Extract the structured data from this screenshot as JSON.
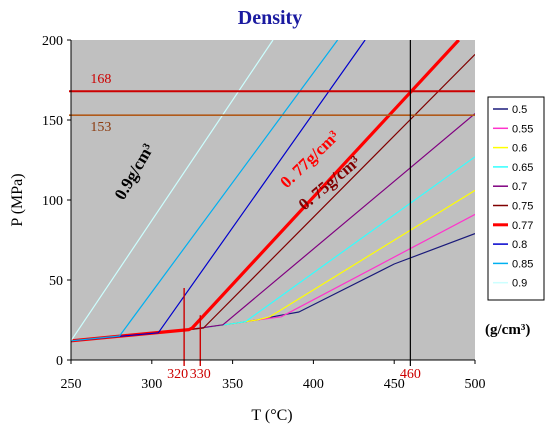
{
  "chart_data": {
    "type": "line",
    "title": "Density",
    "xlabel": "T (°C)",
    "ylabel": "P  (MPa)",
    "xlim": [
      250,
      500
    ],
    "ylim": [
      0,
      200
    ],
    "xticks": [
      "250",
      "300",
      "350",
      "400",
      "450",
      "500"
    ],
    "yticks": [
      "0",
      "50",
      "100",
      "150",
      "200"
    ],
    "grid": false,
    "legend_position": "right",
    "unit_label": "(g/cm³)",
    "series": [
      {
        "name": "0.5",
        "color": "#1a1a7a",
        "width": 1.2,
        "points": [
          [
            250,
            12
          ],
          [
            323,
            19
          ],
          [
            352,
            23
          ],
          [
            365,
            25
          ],
          [
            380,
            28
          ],
          [
            391,
            30
          ],
          [
            450,
            60
          ],
          [
            500,
            79
          ]
        ]
      },
      {
        "name": "0.55",
        "color": "#ff33cc",
        "width": 1.2,
        "points": [
          [
            250,
            12
          ],
          [
            323,
            19
          ],
          [
            352,
            23
          ],
          [
            365,
            25
          ],
          [
            380,
            27
          ],
          [
            500,
            91
          ]
        ]
      },
      {
        "name": "0.6",
        "color": "#ffff00",
        "width": 1.2,
        "points": [
          [
            250,
            12
          ],
          [
            323,
            19
          ],
          [
            352,
            23
          ],
          [
            365,
            25
          ],
          [
            373,
            27
          ],
          [
            500,
            106
          ]
        ]
      },
      {
        "name": "0.65",
        "color": "#33ffff",
        "width": 1.2,
        "points": [
          [
            250,
            12
          ],
          [
            323,
            19
          ],
          [
            352,
            23
          ],
          [
            358,
            24
          ],
          [
            500,
            127
          ]
        ]
      },
      {
        "name": "0.7",
        "color": "#800080",
        "width": 1.2,
        "points": [
          [
            250,
            12
          ],
          [
            323,
            19
          ],
          [
            344,
            22
          ],
          [
            500,
            154
          ]
        ]
      },
      {
        "name": "0.75",
        "color": "#800000",
        "width": 1.2,
        "points": [
          [
            250,
            12
          ],
          [
            323,
            19
          ],
          [
            332,
            20
          ],
          [
            500,
            191
          ]
        ]
      },
      {
        "name": "0.77",
        "color": "#ff0000",
        "width": 3.2,
        "points": [
          [
            250,
            12
          ],
          [
            323,
            19
          ],
          [
            325,
            20
          ],
          [
            490,
            200
          ]
        ]
      },
      {
        "name": "0.8",
        "color": "#0000cc",
        "width": 1.2,
        "points": [
          [
            250,
            12
          ],
          [
            304,
            17
          ],
          [
            432,
            200
          ]
        ]
      },
      {
        "name": "0.85",
        "color": "#00b0f0",
        "width": 1.2,
        "points": [
          [
            250,
            12
          ],
          [
            280,
            15
          ],
          [
            415,
            200
          ]
        ]
      },
      {
        "name": "0.9",
        "color": "#ccffff",
        "width": 1.2,
        "points": [
          [
            250,
            12
          ],
          [
            375,
            200
          ]
        ]
      }
    ],
    "reference_lines": [
      {
        "orientation": "h",
        "value": 168,
        "color": "#cc0000",
        "width": 2
      },
      {
        "orientation": "h",
        "value": 153,
        "color": "#b05a1a",
        "width": 1.6
      },
      {
        "orientation": "v",
        "value": 460,
        "color": "#000000",
        "width": 1.2
      },
      {
        "orientation": "v",
        "value": 320,
        "color": "#cc0000",
        "width": 1.4,
        "ymax": 45
      },
      {
        "orientation": "v",
        "value": 330,
        "color": "#cc0000",
        "width": 1.4,
        "ymax": 28
      }
    ],
    "annotations": [
      {
        "text": "168",
        "x": 262,
        "y": 173,
        "color": "#cc0000",
        "style": "normal"
      },
      {
        "text": "153",
        "x": 262,
        "y": 143,
        "color": "#8b3a0e",
        "style": "normal"
      },
      {
        "text": "0.9g/cm³",
        "x": 292,
        "y": 116,
        "color": "#000000",
        "style": "bold",
        "angle": -60
      },
      {
        "text": "0. 77g/cm³",
        "x": 400,
        "y": 123,
        "color": "#ff0000",
        "style": "bold",
        "angle": -44
      },
      {
        "text": "0. 75g/cm³",
        "x": 412,
        "y": 108,
        "color": "#800000",
        "style": "bold",
        "angle": -40
      }
    ],
    "axis_annotations": [
      {
        "text": "320",
        "x": 316,
        "color": "#cc0000"
      },
      {
        "text": "330",
        "x": 330,
        "color": "#cc0000"
      },
      {
        "text": "460",
        "x": 460,
        "color": "#cc0000"
      }
    ]
  }
}
